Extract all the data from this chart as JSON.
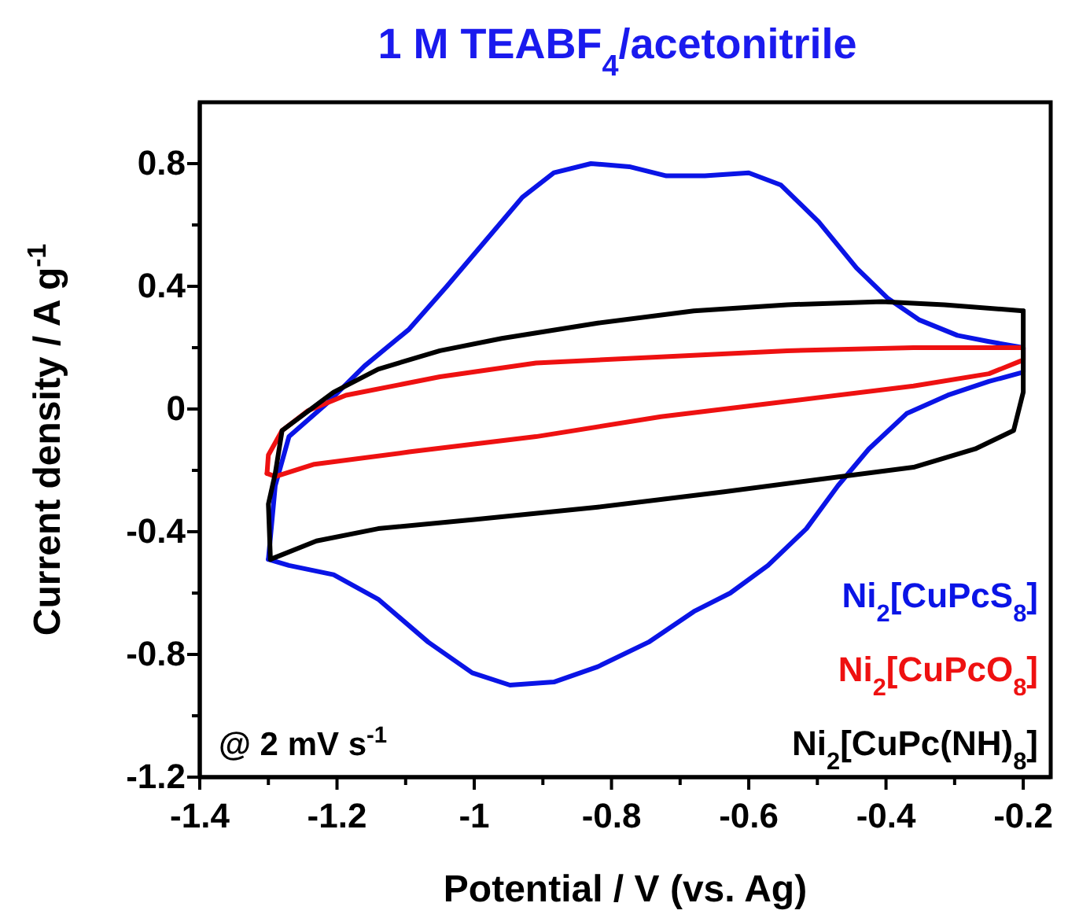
{
  "chart_data": {
    "type": "line",
    "title": "1 M TEABF$_{4}$/acetonitrile",
    "xlabel": "Potential / V (vs. Ag)",
    "ylabel": "Current density / A g$^{-1}$",
    "xlim": [
      -1.4,
      -0.16
    ],
    "ylim": [
      -1.2,
      1.0
    ],
    "xticks": [
      -1.4,
      {
        "value": -1.3,
        "label": null
      },
      -1.2,
      {
        "value": -1.1,
        "label": null
      },
      {
        "value": -1,
        "label": "-1"
      },
      {
        "value": -0.9,
        "label": null
      },
      -0.8,
      {
        "value": -0.7,
        "label": null
      },
      -0.6,
      {
        "value": -0.5,
        "label": null
      },
      -0.4,
      {
        "value": -0.3,
        "label": null
      },
      -0.2
    ],
    "yticks": [
      -1.2,
      {
        "value": -1.0,
        "label": null
      },
      -0.8,
      {
        "value": -0.6,
        "label": null
      },
      -0.4,
      {
        "value": -0.2,
        "label": null
      },
      0,
      {
        "value": 0.2,
        "label": null
      },
      0.4,
      {
        "value": 0.6,
        "label": null
      },
      0.8
    ],
    "grid": false,
    "marker": "none",
    "line_style": "solid",
    "annotations": [
      "@ 2 mV s$^{-1}$"
    ],
    "series": [
      {
        "name": "Ni$_{2}$[CuPcS$_{8}$]",
        "color": "#0a14e6",
        "x": [
          -1.3,
          -1.29,
          -1.27,
          -1.214,
          -1.16,
          -1.095,
          -1.04,
          -0.985,
          -0.93,
          -0.884,
          -0.83,
          -0.774,
          -0.72,
          -0.664,
          -0.6,
          -0.553,
          -0.498,
          -0.443,
          -0.397,
          -0.351,
          -0.296,
          -0.25,
          -0.2
        ],
        "values": [
          -0.49,
          -0.25,
          -0.09,
          0.02,
          0.14,
          0.26,
          0.4,
          0.545,
          0.69,
          0.77,
          0.8,
          0.79,
          0.76,
          0.76,
          0.77,
          0.73,
          0.61,
          0.46,
          0.36,
          0.29,
          0.24,
          0.22,
          0.2
        ]
      },
      {
        "color": "#0a14e6",
        "x": [
          -0.2,
          -0.2,
          -0.25,
          -0.31,
          -0.37,
          -0.425,
          -0.47,
          -0.516,
          -0.572,
          -0.627,
          -0.68,
          -0.746,
          -0.82,
          -0.884,
          -0.948,
          -1.003,
          -1.067,
          -1.14,
          -1.205,
          -1.27,
          -1.3
        ],
        "values": [
          0.2,
          0.12,
          0.09,
          0.045,
          -0.015,
          -0.13,
          -0.25,
          -0.39,
          -0.51,
          -0.6,
          -0.66,
          -0.76,
          -0.84,
          -0.89,
          -0.9,
          -0.86,
          -0.76,
          -0.62,
          -0.54,
          -0.51,
          -0.49
        ]
      },
      {
        "name": "Ni$_{2}$[CuPcO$_{8}$]",
        "color": "#ee1111",
        "x": [
          -1.302,
          -1.3,
          -1.28,
          -1.242,
          -1.187,
          -1.05,
          -0.91,
          -0.728,
          -0.544,
          -0.36,
          -0.2
        ],
        "values": [
          -0.21,
          -0.15,
          -0.07,
          -0.005,
          0.045,
          0.105,
          0.15,
          0.17,
          0.19,
          0.2,
          0.2
        ]
      },
      {
        "color": "#ee1111",
        "x": [
          -0.2,
          -0.2,
          -0.25,
          -0.36,
          -0.544,
          -0.728,
          -0.91,
          -1.095,
          -1.233,
          -1.29,
          -1.302
        ],
        "values": [
          0.2,
          0.16,
          0.115,
          0.075,
          0.025,
          -0.025,
          -0.09,
          -0.14,
          -0.18,
          -0.22,
          -0.21
        ]
      },
      {
        "name": "Ni$_{2}$[CuPc(NH)$_{8}$]",
        "color": "#000000",
        "x": [
          -1.297,
          -1.3,
          -1.29,
          -1.28,
          -1.25,
          -1.205,
          -1.14,
          -1.05,
          -0.96,
          -0.82,
          -0.68,
          -0.544,
          -0.406,
          -0.315,
          -0.2
        ],
        "values": [
          -0.49,
          -0.31,
          -0.21,
          -0.07,
          -0.02,
          0.055,
          0.13,
          0.19,
          0.23,
          0.28,
          0.32,
          0.34,
          0.35,
          0.34,
          0.32
        ]
      },
      {
        "color": "#000000",
        "x": [
          -0.2,
          -0.2,
          -0.214,
          -0.27,
          -0.36,
          -0.5,
          -0.636,
          -0.82,
          -1.0,
          -1.14,
          -1.23,
          -1.297
        ],
        "values": [
          0.32,
          0.055,
          -0.07,
          -0.13,
          -0.19,
          -0.23,
          -0.27,
          -0.32,
          -0.36,
          -0.39,
          -0.43,
          -0.49
        ]
      }
    ]
  }
}
